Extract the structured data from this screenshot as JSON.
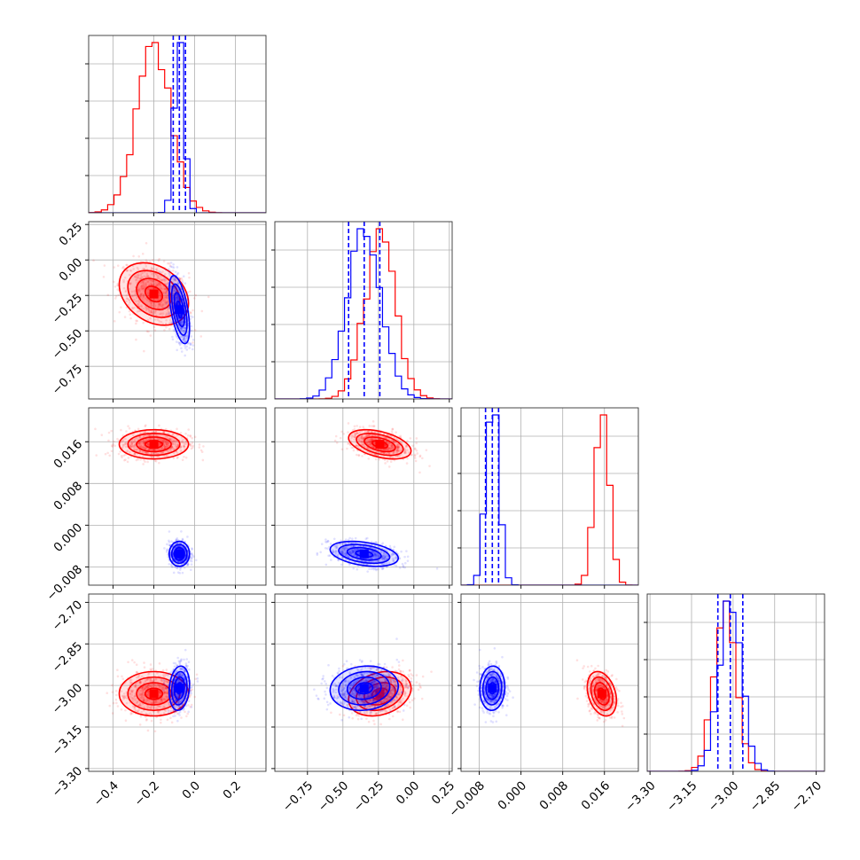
{
  "colors": {
    "red": "#ff0000",
    "blue": "#0000ff"
  },
  "chart_data": {
    "type": "corner",
    "title": "",
    "grid": true,
    "legend": "none",
    "series": [
      {
        "color": "#ff0000",
        "params": [
          {
            "mean": -0.2,
            "std": 0.085,
            "quantiles": []
          },
          {
            "mean": -0.24,
            "std": 0.11,
            "quantiles": []
          },
          {
            "mean": 0.0155,
            "std": 0.0014,
            "quantiles": []
          },
          {
            "mean": -3.03,
            "std": 0.04,
            "quantiles": []
          }
        ],
        "corr": [
          [
            1,
            -0.3,
            0,
            0
          ],
          [
            -0.3,
            1,
            -0.45,
            0.25
          ],
          [
            0,
            -0.45,
            1,
            -0.3
          ],
          [
            0,
            0.25,
            -0.3,
            1
          ]
        ]
      },
      {
        "color": "#0000ff",
        "params": [
          {
            "mean": -0.075,
            "std": 0.025,
            "quantiles": [
              -0.105,
              -0.075,
              -0.045
            ]
          },
          {
            "mean": -0.35,
            "std": 0.12,
            "quantiles": [
              -0.46,
              -0.35,
              -0.24
            ]
          },
          {
            "mean": -0.0055,
            "std": 0.0012,
            "quantiles": [
              -0.0068,
              -0.0055,
              -0.0043
            ]
          },
          {
            "mean": -3.01,
            "std": 0.04,
            "quantiles": [
              -3.055,
              -3.01,
              -2.965
            ]
          }
        ],
        "corr": [
          [
            1,
            -0.55,
            0,
            0.15
          ],
          [
            -0.55,
            1,
            -0.35,
            0.1
          ],
          [
            0,
            -0.35,
            1,
            0.05
          ],
          [
            0.15,
            0.1,
            0.05,
            1
          ]
        ]
      }
    ],
    "ranges": [
      [
        -0.52,
        0.35
      ],
      [
        -0.98,
        0.27
      ],
      [
        -0.0115,
        0.0225
      ],
      [
        -3.31,
        -2.67
      ]
    ],
    "ticks": [
      [
        "−0.4",
        "−0.2",
        "0.0",
        "0.2"
      ],
      [
        "−0.75",
        "−0.50",
        "−0.25",
        "0.00",
        "0.25"
      ],
      [
        "−0.008",
        "0.000",
        "0.008",
        "0.016"
      ],
      [
        "−3.30",
        "−3.15",
        "−3.00",
        "−2.85",
        "−2.70"
      ]
    ],
    "tick_values": [
      [
        -0.4,
        -0.2,
        0.0,
        0.2
      ],
      [
        -0.75,
        -0.5,
        -0.25,
        0.0,
        0.25
      ],
      [
        -0.008,
        0.0,
        0.008,
        0.016
      ],
      [
        -3.3,
        -3.15,
        -3.0,
        -2.85,
        -2.7
      ]
    ]
  }
}
